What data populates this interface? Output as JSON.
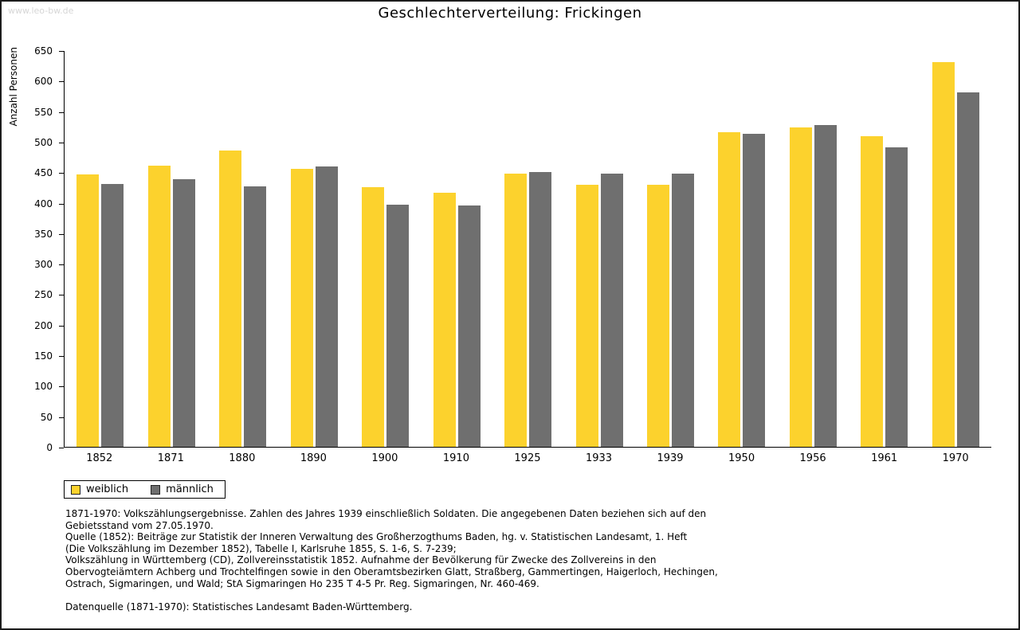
{
  "header": {
    "watermark": "www.leo-bw.de",
    "title": "Geschlechterverteilung: Frickingen"
  },
  "chart_data": {
    "type": "bar",
    "title": "Geschlechterverteilung: Frickingen",
    "xlabel": "",
    "ylabel": "Anzahl Personen",
    "ylim": [
      0,
      650
    ],
    "ytick_step": 50,
    "grid": false,
    "legend_position": "bottom-left",
    "categories": [
      "1852",
      "1871",
      "1880",
      "1890",
      "1900",
      "1910",
      "1925",
      "1933",
      "1939",
      "1950",
      "1956",
      "1961",
      "1970"
    ],
    "series": [
      {
        "name": "weiblich",
        "color": "#fcd22d",
        "values": [
          447,
          461,
          485,
          456,
          426,
          417,
          448,
          430,
          429,
          516,
          523,
          509,
          630
        ]
      },
      {
        "name": "männlich",
        "color": "#6f6f6f",
        "values": [
          431,
          438,
          427,
          460,
          397,
          395,
          450,
          448,
          448,
          513,
          527,
          491,
          581
        ]
      }
    ]
  },
  "footer": {
    "lines": [
      "1871-1970: Volkszählungsergebnisse. Zahlen des Jahres 1939 einschließlich Soldaten. Die angegebenen Daten beziehen sich auf den",
      "Gebietsstand vom 27.05.1970.",
      "Quelle (1852): Beiträge zur Statistik der Inneren Verwaltung des Großherzogthums Baden, hg. v. Statistischen Landesamt, 1. Heft",
      "(Die Volkszählung im Dezember 1852), Tabelle I, Karlsruhe 1855, S. 1-6, S. 7-239;",
      "Volkszählung in Württemberg (CD), Zollvereinsstatistik 1852. Aufnahme der Bevölkerung für Zwecke des Zollvereins in den",
      "Obervogteiämtern Achberg und Trochtelfingen sowie in den Oberamtsbezirken Glatt, Straßberg, Gammertingen, Haigerloch, Hechingen,",
      "Ostrach, Sigmaringen, und Wald; StA Sigmaringen Ho 235 T 4-5 Pr. Reg. Sigmaringen, Nr. 460-469.",
      "",
      "Datenquelle (1871-1970): Statistisches Landesamt Baden-Württemberg."
    ]
  }
}
